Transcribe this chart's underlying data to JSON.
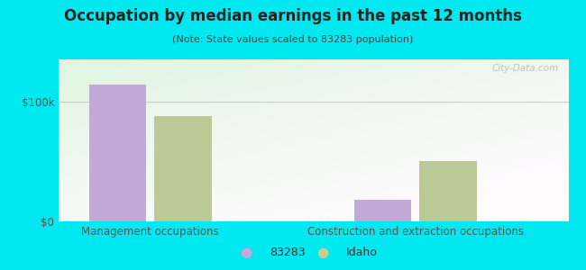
{
  "title": "Occupation by median earnings in the past 12 months",
  "subtitle": "(Note: State values scaled to 83283 population)",
  "categories": [
    "Management occupations",
    "Construction and extraction occupations"
  ],
  "series": {
    "83283": [
      114000,
      18000
    ],
    "Idaho": [
      88000,
      50000
    ]
  },
  "bar_colors": {
    "83283": "#c4a8d8",
    "Idaho": "#baca96"
  },
  "yticks": [
    0,
    100000
  ],
  "ytick_labels": [
    "$0",
    "$100k"
  ],
  "background_outer": "#00e8f0",
  "legend_colors": {
    "83283": "#c8a8d8",
    "Idaho": "#c8cc8c"
  },
  "bar_width": 0.28,
  "figsize": [
    6.5,
    3.0
  ],
  "dpi": 100,
  "ylim": [
    0,
    135000
  ],
  "group_positions": [
    0.35,
    1.65
  ]
}
